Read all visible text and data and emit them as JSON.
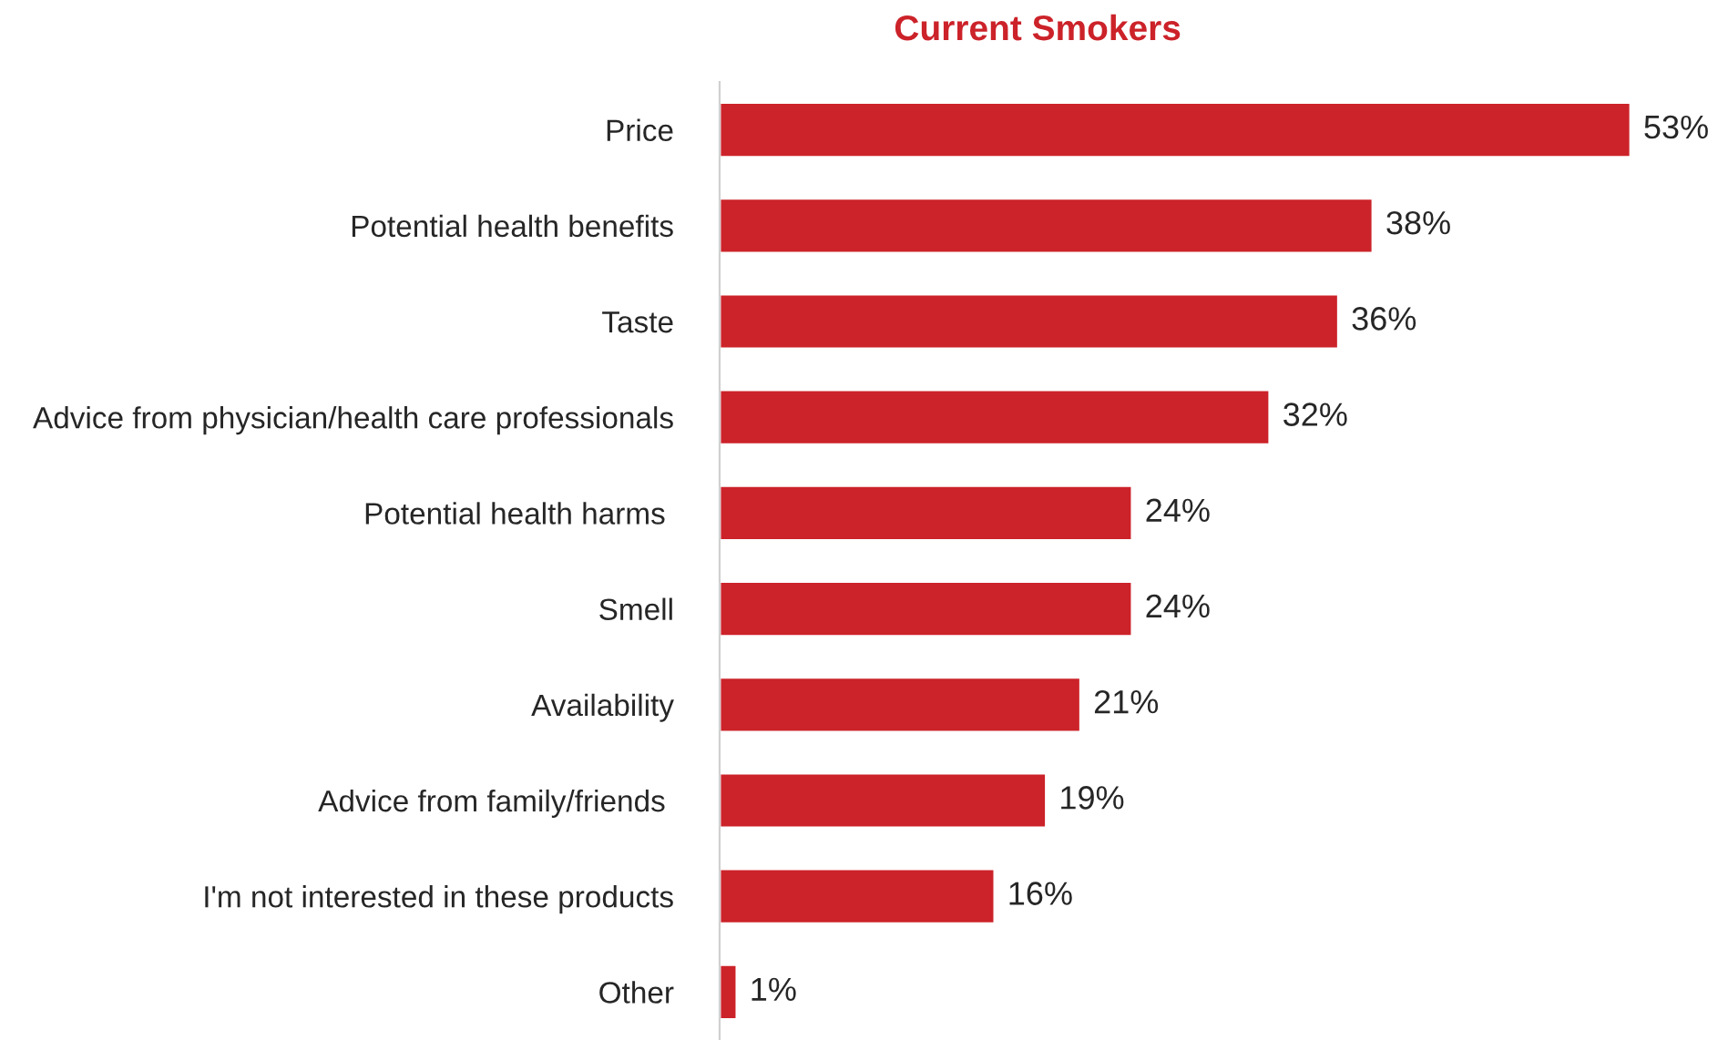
{
  "chart_data": {
    "type": "bar",
    "orientation": "horizontal",
    "title": "Current Smokers",
    "categories": [
      "Price",
      "Potential health benefits",
      "Taste",
      "Advice from physician/health care professionals",
      "Potential health harms ",
      "Smell",
      "Availability",
      "Advice from family/friends ",
      "I'm not interested in these products",
      "Other"
    ],
    "values": [
      53,
      38,
      36,
      32,
      24,
      24,
      21,
      19,
      16,
      1
    ],
    "value_labels": [
      "53%",
      "38%",
      "36%",
      "32%",
      "24%",
      "24%",
      "21%",
      "19%",
      "16%",
      "1%"
    ],
    "color": "#cc2229",
    "grid": false,
    "legend": false
  }
}
